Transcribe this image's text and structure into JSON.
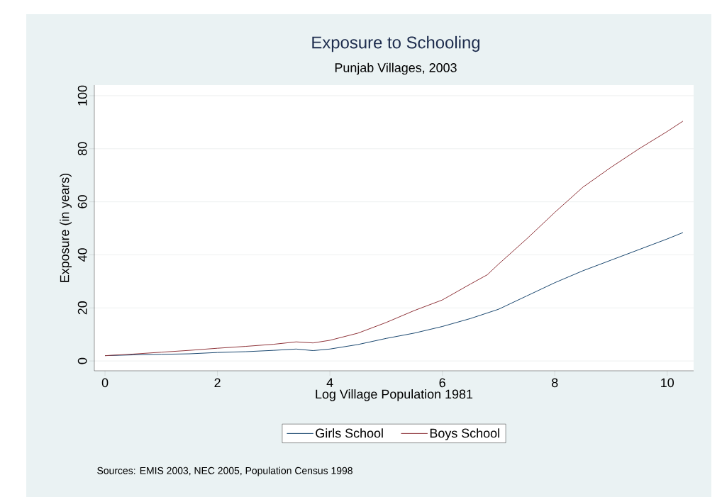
{
  "chart_data": {
    "type": "line",
    "title": "Exposure to Schooling",
    "subtitle": "Punjab Villages, 2003",
    "xlabel": "Log Village Population 1981",
    "ylabel": "Exposure (in years)",
    "xlim": [
      -0.19,
      10.47
    ],
    "ylim": [
      -3.7,
      104
    ],
    "xticks": [
      0,
      2,
      4,
      6,
      8,
      10
    ],
    "yticks": [
      0,
      20,
      40,
      60,
      80,
      100
    ],
    "grid": "y",
    "legend": "bottom",
    "annotations": [
      "Sources: EMIS 2003, NEC 2005, Population Census 1998"
    ],
    "series": [
      {
        "name": "Girls School",
        "color": "#1a476f",
        "x": [
          0,
          0.5,
          1,
          1.5,
          2,
          2.5,
          3,
          3.4,
          3.7,
          4,
          4.5,
          5,
          5.5,
          6,
          6.5,
          7,
          7.5,
          8,
          8.5,
          9,
          9.5,
          10,
          10.28
        ],
        "values": [
          2.0,
          2.3,
          2.5,
          2.7,
          3.2,
          3.5,
          4.0,
          4.5,
          3.9,
          4.5,
          6.2,
          8.5,
          10.5,
          13,
          16,
          19.5,
          24.5,
          29.5,
          34,
          38,
          42,
          46,
          48.4
        ]
      },
      {
        "name": "Boys School",
        "color": "#90353b",
        "x": [
          0,
          0.5,
          1,
          1.5,
          2,
          2.5,
          3,
          3.4,
          3.7,
          4,
          4.5,
          5,
          5.5,
          6,
          6.5,
          6.8,
          7,
          7.5,
          8,
          8.5,
          9,
          9.5,
          10,
          10.28
        ],
        "values": [
          2.0,
          2.6,
          3.3,
          4.0,
          4.8,
          5.5,
          6.3,
          7.2,
          6.8,
          7.8,
          10.5,
          14.5,
          19,
          23,
          29,
          32.5,
          36.5,
          46,
          56,
          65.5,
          73,
          80,
          86.5,
          90.4
        ]
      }
    ]
  }
}
